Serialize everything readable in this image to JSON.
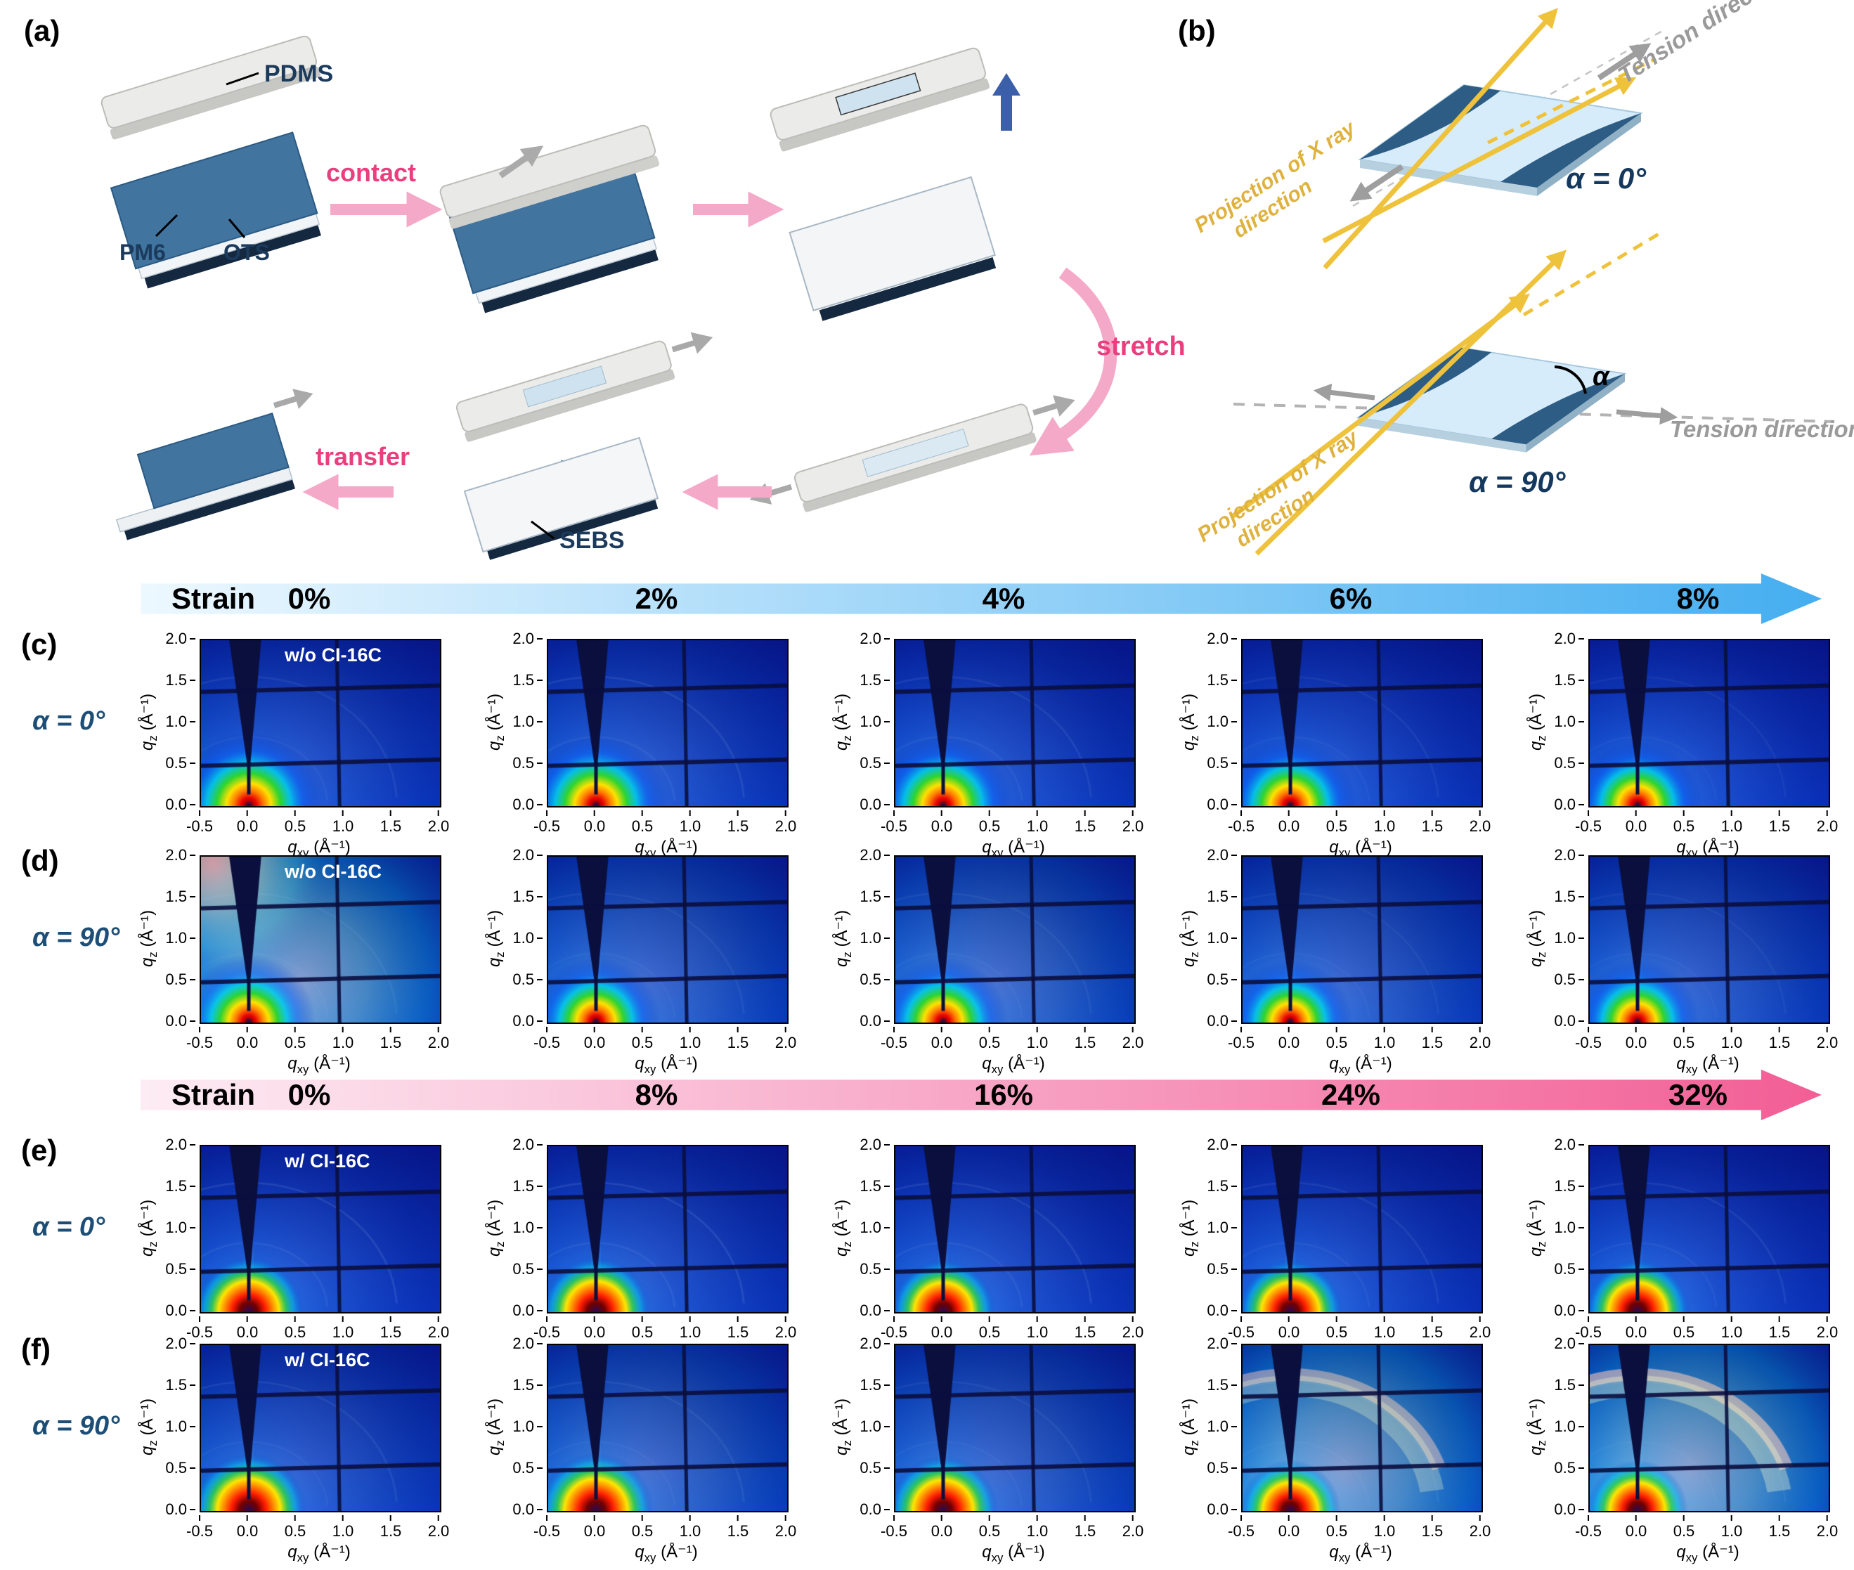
{
  "panel_a": {
    "label": "(a)",
    "pdms": "PDMS",
    "pm6": "PM6",
    "ots": "OTS",
    "sebs": "SEBS",
    "contact": "contact",
    "stretch": "stretch",
    "transfer": "transfer"
  },
  "panel_b": {
    "label": "(b)",
    "tension": "Tension direction",
    "projection_line1": "Projection of X ray",
    "projection_line2": "direction",
    "alpha0": "α = 0°",
    "alpha90": "α = 90°",
    "alpha_symbol": "α"
  },
  "strain_bars": [
    {
      "label": "Strain",
      "values": [
        "0%",
        "2%",
        "4%",
        "6%",
        "8%"
      ],
      "color_from": "#edf8ff",
      "color_to": "#45aef0"
    },
    {
      "label": "Strain",
      "values": [
        "0%",
        "8%",
        "16%",
        "24%",
        "32%"
      ],
      "color_from": "#fdecf4",
      "color_to": "#f25e95"
    }
  ],
  "axes": {
    "q_symbol": "q",
    "sub_z": "z",
    "sub_xy": "xy",
    "unit": "(Å⁻¹)",
    "x_ticks": [
      "-0.5",
      "0.0",
      "0.5",
      "1.0",
      "1.5",
      "2.0"
    ],
    "y_ticks": [
      "0.0",
      "0.5",
      "1.0",
      "1.5",
      "2.0"
    ],
    "x_range": [
      -0.5,
      2.0
    ],
    "y_range": [
      0.0,
      2.0
    ]
  },
  "chart_data": {
    "type": "heatmap",
    "colormap": "jet",
    "description": "2D GIWAXS detector patterns of PM6 films at increasing tensile strain, with X-ray projection parallel (α = 0°) or perpendicular (α = 90°) to the tension direction, without and with CI-16C.",
    "x_label": "q_xy (Å⁻¹)",
    "y_label": "q_z (Å⁻¹)",
    "x_range": [
      -0.5,
      2.0
    ],
    "y_range": [
      0.0,
      2.0
    ],
    "rows": [
      {
        "id": "c",
        "row_label": "(c)",
        "alpha_label": "α = 0°",
        "annotation": "w/o CI-16C",
        "strains": [
          "0%",
          "2%",
          "4%",
          "6%",
          "8%"
        ],
        "plots": [
          {
            "strain": "0%",
            "features": {
              "halo": 0.31,
              "wide": 0.18,
              "ring": 0,
              "topLeft": 0,
              "topArc": 0,
              "debye": 0.35,
              "rod": 0.3
            }
          },
          {
            "strain": "2%",
            "features": {
              "halo": 0.3,
              "wide": 0.2,
              "ring": 0,
              "topLeft": 0,
              "topArc": 0,
              "debye": 0.45,
              "rod": 0.3
            }
          },
          {
            "strain": "4%",
            "features": {
              "halo": 0.29,
              "wide": 0.16,
              "ring": 0,
              "topLeft": 0,
              "topArc": 0,
              "debye": 0.4,
              "rod": 0.28
            }
          },
          {
            "strain": "6%",
            "features": {
              "halo": 0.28,
              "wide": 0.13,
              "ring": 0,
              "topLeft": 0,
              "topArc": 0,
              "debye": 0.3,
              "rod": 0.26
            }
          },
          {
            "strain": "8%",
            "features": {
              "halo": 0.27,
              "wide": 0.11,
              "ring": 0,
              "topLeft": 0,
              "topArc": 0,
              "debye": 0.25,
              "rod": 0.24
            }
          }
        ]
      },
      {
        "id": "d",
        "row_label": "(d)",
        "alpha_label": "α = 90°",
        "annotation": "w/o CI-16C",
        "strains": [
          "0%",
          "2%",
          "4%",
          "6%",
          "8%"
        ],
        "plots": [
          {
            "strain": "0%",
            "features": {
              "halo": 0.28,
              "wide": 0.95,
              "ring": 0,
              "topLeft": 0.95,
              "topArc": 0,
              "debye": 0.3,
              "rod": 0.35
            }
          },
          {
            "strain": "2%",
            "features": {
              "halo": 0.27,
              "wide": 0.38,
              "ring": 0,
              "topLeft": 0,
              "topArc": 0,
              "debye": 0.3,
              "rod": 0.35
            }
          },
          {
            "strain": "4%",
            "features": {
              "halo": 0.27,
              "wide": 0.45,
              "ring": 0,
              "topLeft": 0,
              "topArc": 0,
              "debye": 0.3,
              "rod": 0.35
            }
          },
          {
            "strain": "6%",
            "features": {
              "halo": 0.26,
              "wide": 0.34,
              "ring": 0,
              "topLeft": 0,
              "topArc": 0,
              "debye": 0.25,
              "rod": 0.32
            }
          },
          {
            "strain": "8%",
            "features": {
              "halo": 0.26,
              "wide": 0.3,
              "ring": 0,
              "topLeft": 0,
              "topArc": 0,
              "debye": 0.25,
              "rod": 0.32
            }
          }
        ]
      },
      {
        "id": "e",
        "row_label": "(e)",
        "alpha_label": "α = 0°",
        "annotation": "w/ CI-16C",
        "strains": [
          "0%",
          "8%",
          "16%",
          "24%",
          "32%"
        ],
        "plots": [
          {
            "strain": "0%",
            "features": {
              "halo": 0.23,
              "wide": 0.13,
              "ring": 1,
              "topLeft": 0,
              "topArc": 0,
              "debye": 0.5,
              "rod": 0.5
            }
          },
          {
            "strain": "8%",
            "features": {
              "halo": 0.23,
              "wide": 0.17,
              "ring": 1,
              "topLeft": 0,
              "topArc": 0,
              "debye": 0.5,
              "rod": 0.5
            }
          },
          {
            "strain": "16%",
            "features": {
              "halo": 0.22,
              "wide": 0.15,
              "ring": 1,
              "topLeft": 0,
              "topArc": 0,
              "debye": 0.45,
              "rod": 0.45
            }
          },
          {
            "strain": "24%",
            "features": {
              "halo": 0.22,
              "wide": 0.13,
              "ring": 1,
              "topLeft": 0,
              "topArc": 0,
              "debye": 0.4,
              "rod": 0.45
            }
          },
          {
            "strain": "32%",
            "features": {
              "halo": 0.22,
              "wide": 0.12,
              "ring": 1,
              "topLeft": 0,
              "topArc": 0,
              "debye": 0.4,
              "rod": 0.4
            }
          }
        ]
      },
      {
        "id": "f",
        "row_label": "(f)",
        "alpha_label": "α = 90°",
        "annotation": "w/ CI-16C",
        "strains": [
          "0%",
          "8%",
          "16%",
          "24%",
          "32%"
        ],
        "plots": [
          {
            "strain": "0%",
            "features": {
              "halo": 0.24,
              "wide": 0.25,
              "ring": 1,
              "topLeft": 0,
              "topArc": 0,
              "debye": 0.35,
              "rod": 0.45
            }
          },
          {
            "strain": "8%",
            "features": {
              "halo": 0.24,
              "wide": 0.42,
              "ring": 1,
              "topLeft": 0,
              "topArc": 0,
              "debye": 0.35,
              "rod": 0.45
            }
          },
          {
            "strain": "16%",
            "features": {
              "halo": 0.23,
              "wide": 0.36,
              "ring": 1,
              "topLeft": 0,
              "topArc": 0,
              "debye": 0.3,
              "rod": 0.45
            }
          },
          {
            "strain": "24%",
            "features": {
              "halo": 0.21,
              "wide": 0.95,
              "ring": 0.8,
              "topLeft": 0,
              "topArc": 0.8,
              "debye": 0.3,
              "rod": 0.4
            }
          },
          {
            "strain": "32%",
            "features": {
              "halo": 0.21,
              "wide": 1.0,
              "ring": 0.8,
              "topLeft": 0,
              "topArc": 0.95,
              "debye": 0.3,
              "rod": 0.4
            }
          }
        ]
      }
    ]
  }
}
